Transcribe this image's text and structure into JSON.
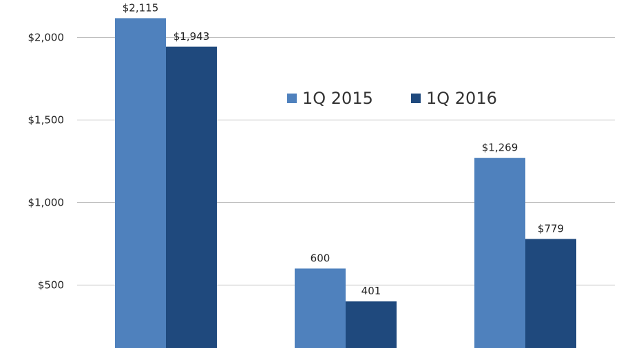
{
  "chart_data": {
    "type": "bar",
    "title": "",
    "xlabel": "",
    "ylabel": "",
    "categories": [
      "",
      "",
      ""
    ],
    "ylim": [
      119,
      2225
    ],
    "yticks": [
      500,
      1000,
      1500,
      2000
    ],
    "ytick_labels": [
      "$500",
      "$1,000",
      "$1,500",
      "$2,000"
    ],
    "grid": true,
    "legend_position": "top-center",
    "series": [
      {
        "name": "1Q 2015",
        "color": "#4f81bd",
        "values": [
          2115,
          600,
          1269
        ],
        "labels": [
          "$2,115",
          "600",
          "$1,269"
        ]
      },
      {
        "name": "1Q 2016",
        "color": "#1f497d",
        "values": [
          1943,
          401,
          779
        ],
        "labels": [
          "$1,943",
          "401",
          "$779"
        ]
      }
    ]
  }
}
